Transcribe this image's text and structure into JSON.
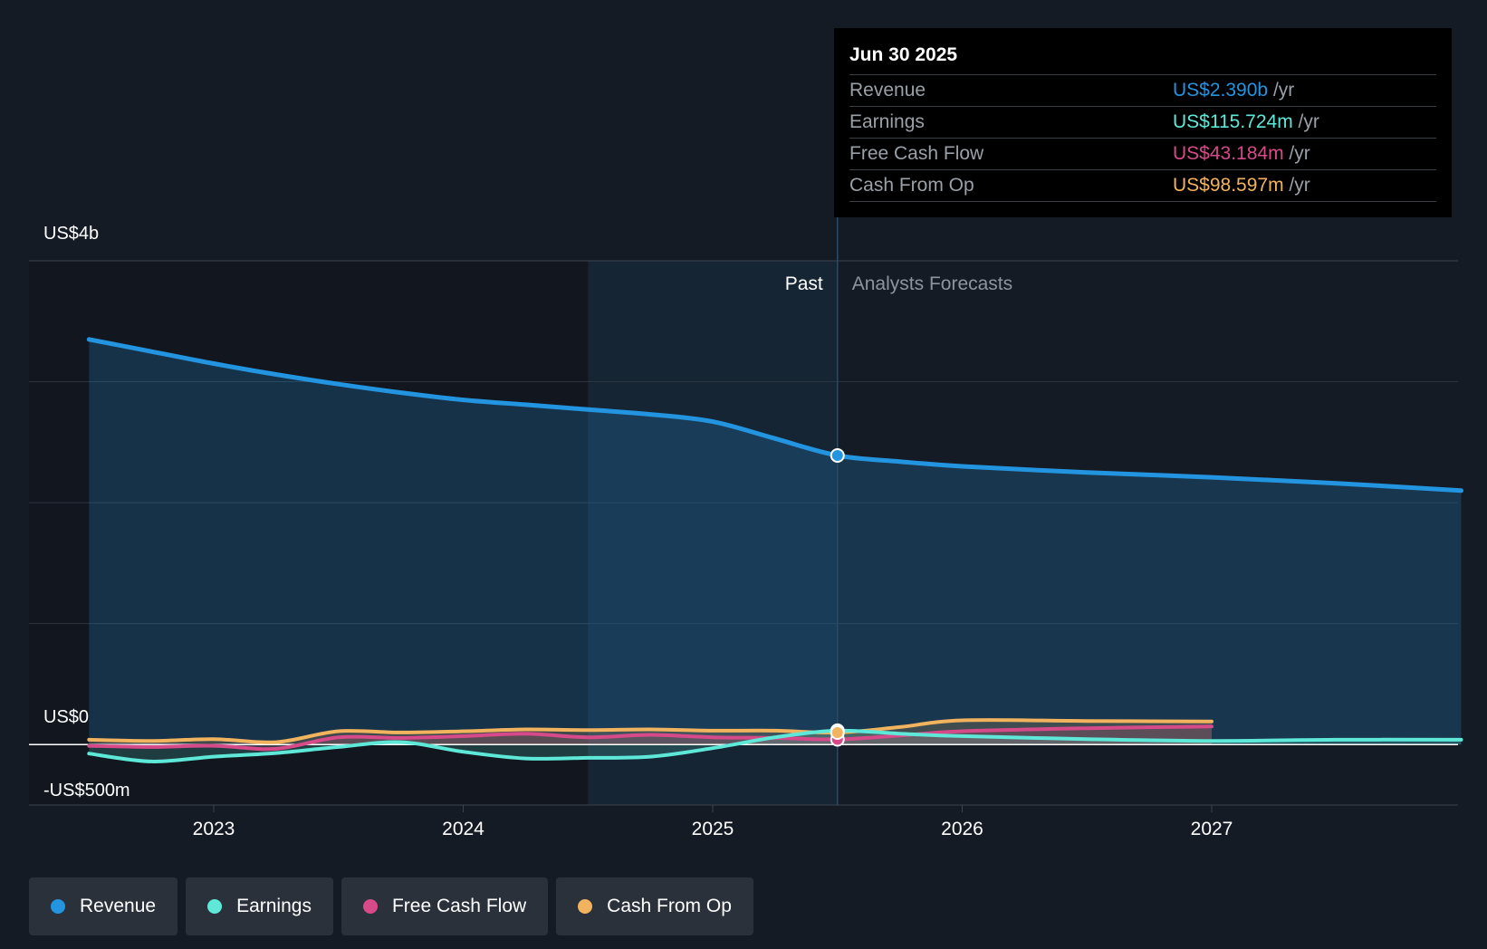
{
  "tooltip": {
    "date": "Jun 30 2025",
    "rows": [
      {
        "label": "Revenue",
        "value": "US$2.390b",
        "unit": "/yr",
        "color": "#2394df"
      },
      {
        "label": "Earnings",
        "value": "US$115.724m",
        "unit": "/yr",
        "color": "#5ee8d8"
      },
      {
        "label": "Free Cash Flow",
        "value": "US$43.184m",
        "unit": "/yr",
        "color": "#d64a8a"
      },
      {
        "label": "Cash From Op",
        "value": "US$98.597m",
        "unit": "/yr",
        "color": "#f2b35e"
      }
    ]
  },
  "legend": [
    {
      "label": "Revenue",
      "color": "#2394df"
    },
    {
      "label": "Earnings",
      "color": "#5ee8d8"
    },
    {
      "label": "Free Cash Flow",
      "color": "#d64a8a"
    },
    {
      "label": "Cash From Op",
      "color": "#f2b35e"
    }
  ],
  "chart_data": {
    "type": "line",
    "y_axis_labels": [
      "US$4b",
      "US$0",
      "-US$500m"
    ],
    "ylim": [
      -500,
      4000
    ],
    "y_unit": "US$m",
    "xlim": [
      2022.0,
      2028.0
    ],
    "x_ticks": [
      2023,
      2024,
      2025,
      2026,
      2027
    ],
    "x_tick_labels": [
      "2023",
      "2024",
      "2025",
      "2026",
      "2027"
    ],
    "grid": true,
    "past_label": "Past",
    "forecast_label": "Analysts Forecasts",
    "past_end": 2025.5,
    "highlight_start": 2024.5,
    "series": [
      {
        "name": "Revenue",
        "color": "#2394df",
        "x": [
          2022.5,
          2022.75,
          2023.0,
          2023.25,
          2023.5,
          2023.75,
          2024.0,
          2024.25,
          2024.5,
          2024.75,
          2025.0,
          2025.25,
          2025.5,
          2025.75,
          2026.0,
          2026.5,
          2027.0,
          2027.5,
          2028.0
        ],
        "y": [
          3350,
          3250,
          3150,
          3060,
          2980,
          2910,
          2850,
          2810,
          2770,
          2730,
          2670,
          2530,
          2390,
          2340,
          2300,
          2250,
          2210,
          2160,
          2100
        ]
      },
      {
        "name": "Earnings",
        "color": "#5ee8d8",
        "x": [
          2022.5,
          2022.75,
          2023.0,
          2023.25,
          2023.5,
          2023.75,
          2024.0,
          2024.25,
          2024.5,
          2024.75,
          2025.0,
          2025.25,
          2025.5,
          2025.75,
          2026.0,
          2026.5,
          2027.0,
          2027.5,
          2028.0
        ],
        "y": [
          -75,
          -140,
          -100,
          -70,
          -20,
          20,
          -60,
          -115,
          -110,
          -100,
          -30,
          60,
          115,
          90,
          70,
          45,
          30,
          40,
          40
        ]
      },
      {
        "name": "Free Cash Flow",
        "color": "#d64a8a",
        "x": [
          2022.5,
          2022.75,
          2023.0,
          2023.25,
          2023.5,
          2023.75,
          2024.0,
          2024.25,
          2024.5,
          2024.75,
          2025.0,
          2025.25,
          2025.5,
          2025.75,
          2026.0,
          2026.5,
          2027.0
        ],
        "y": [
          -10,
          -20,
          -10,
          -35,
          60,
          55,
          70,
          90,
          60,
          80,
          60,
          55,
          43,
          75,
          110,
          135,
          150
        ]
      },
      {
        "name": "Cash From Op",
        "color": "#f2b35e",
        "x": [
          2022.5,
          2022.75,
          2023.0,
          2023.25,
          2023.5,
          2023.75,
          2024.0,
          2024.25,
          2024.5,
          2024.75,
          2025.0,
          2025.25,
          2025.5,
          2025.75,
          2026.0,
          2026.5,
          2027.0
        ],
        "y": [
          40,
          30,
          45,
          20,
          110,
          100,
          110,
          125,
          120,
          125,
          115,
          115,
          99,
          145,
          200,
          195,
          190
        ]
      }
    ]
  }
}
